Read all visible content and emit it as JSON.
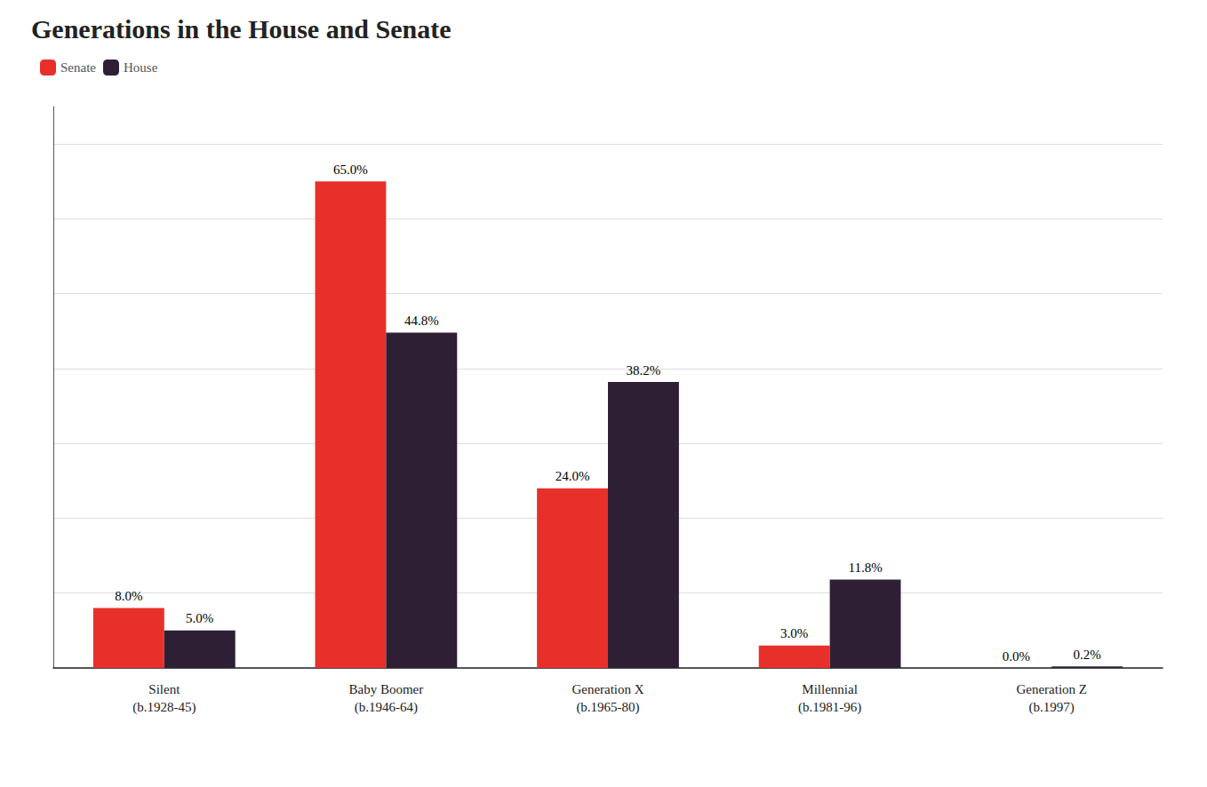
{
  "chart_data": {
    "type": "bar",
    "title": "Generations in the House and Senate",
    "categories": [
      "Silent\n(b.1928-45)",
      "Baby Boomer\n(b.1946-64)",
      "Generation X\n(b.1965-80)",
      "Millennial\n(b.1981-96)",
      "Generation Z\n(b.1997)"
    ],
    "series": [
      {
        "name": "Senate",
        "color": "#e8302a",
        "values": [
          8.0,
          65.0,
          24.0,
          3.0,
          0.0
        ],
        "value_labels": [
          "8.0%",
          "65.0%",
          "24.0%",
          "3.0%",
          "0.0%"
        ]
      },
      {
        "name": "House",
        "color": "#2e1f35",
        "values": [
          5.0,
          44.8,
          38.2,
          11.8,
          0.2
        ],
        "value_labels": [
          "5.0%",
          "44.8%",
          "38.2%",
          "11.8%",
          "0.2%"
        ]
      }
    ],
    "ylim": [
      0,
      75
    ],
    "yticks": [
      0,
      10,
      20,
      30,
      40,
      50,
      60,
      70
    ],
    "grid": true,
    "legend": "upper left",
    "data_labels": true,
    "tick_labels": "x"
  }
}
